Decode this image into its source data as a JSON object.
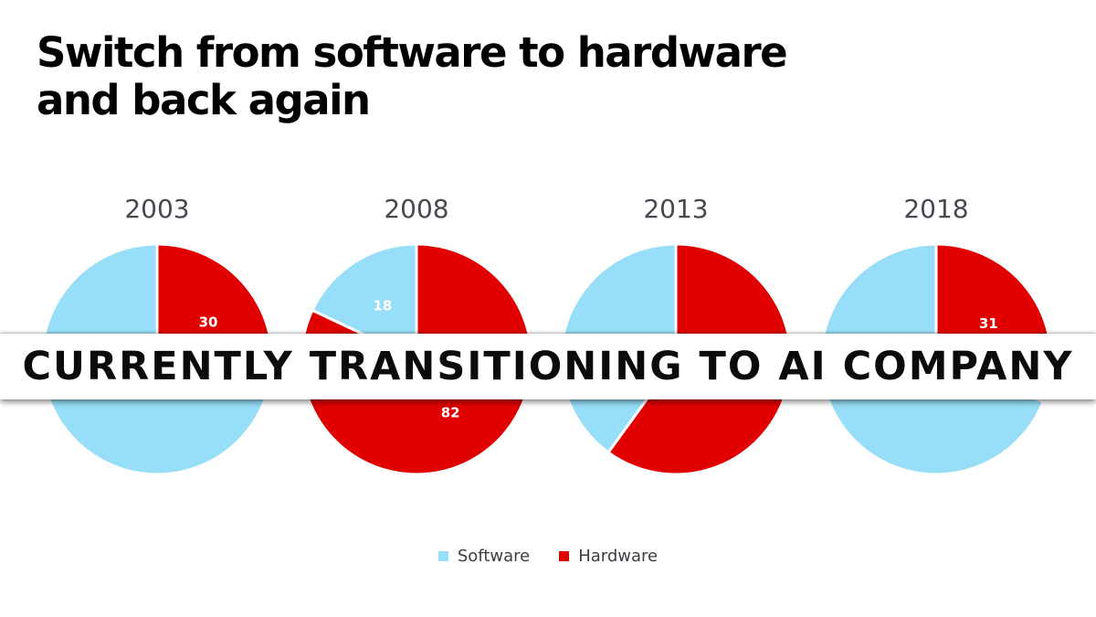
{
  "title": {
    "line1": "Switch from software to hardware",
    "line2": "and back again"
  },
  "banner": {
    "text": "CURRENTLY TRANSITIONING TO AI COMPANY"
  },
  "legend": {
    "software_label": "Software",
    "hardware_label": "Hardware"
  },
  "colors": {
    "software": "#97def8",
    "hardware": "#e00000"
  },
  "chart_data": {
    "type": "pie",
    "title": "Switch from software to hardware and back again",
    "series_names": [
      "Software",
      "Hardware"
    ],
    "legend_position": "bottom",
    "pies": [
      {
        "label": "2003",
        "values": [
          70,
          30
        ],
        "shown_labels": [
          "",
          "30"
        ]
      },
      {
        "label": "2008",
        "values": [
          18,
          82
        ],
        "shown_labels": [
          "18",
          "82"
        ]
      },
      {
        "label": "2013",
        "values": [
          40,
          60
        ],
        "shown_labels": [
          "",
          ""
        ]
      },
      {
        "label": "2018",
        "values": [
          69,
          31
        ],
        "shown_labels": [
          "",
          "31"
        ]
      }
    ]
  }
}
